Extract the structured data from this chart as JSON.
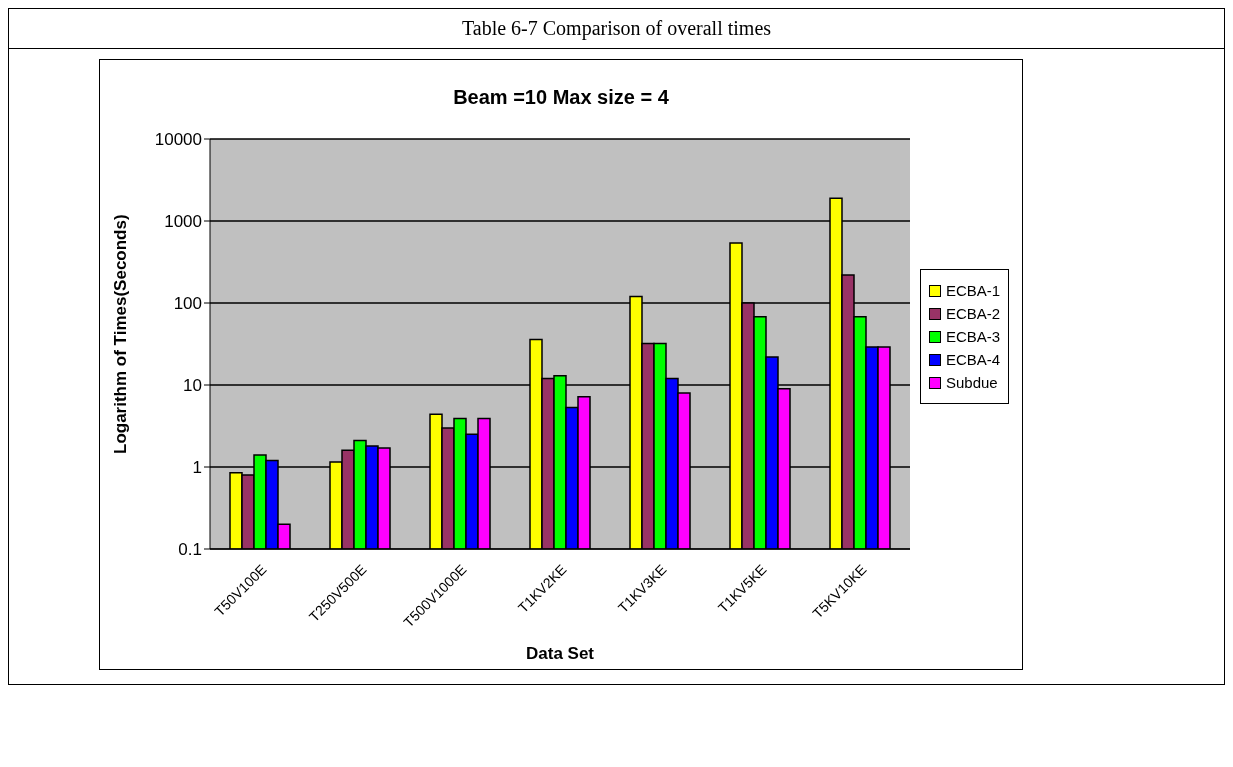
{
  "chart_data": {
    "type": "bar",
    "title": "Table 6-7 Comparison of overall times",
    "subtitle": "Beam =10 Max size = 4",
    "xlabel": "Data Set",
    "ylabel": "Logarithm of Times(Seconds)",
    "categories": [
      "T50V100E",
      "T250V500E",
      "T500V1000E",
      "T1KV2KE",
      "T1KV3KE",
      "T1KV5KE",
      "T5KV10KE"
    ],
    "series": [
      {
        "name": "ECBA-1",
        "color": "#ffff00",
        "values": [
          0.85,
          1.15,
          4.4,
          36,
          120,
          540,
          1900
        ]
      },
      {
        "name": "ECBA-2",
        "color": "#993366",
        "values": [
          0.8,
          1.6,
          3,
          12,
          32,
          100,
          220
        ]
      },
      {
        "name": "ECBA-3",
        "color": "#00ff00",
        "values": [
          1.4,
          2.1,
          3.9,
          13,
          32,
          68,
          68
        ]
      },
      {
        "name": "ECBA-4",
        "color": "#0000ff",
        "values": [
          1.2,
          1.8,
          2.5,
          5.3,
          12,
          22,
          29
        ]
      },
      {
        "name": "Subdue",
        "color": "#ff00ff",
        "values": [
          0.2,
          1.7,
          3.9,
          7.2,
          8,
          9,
          29
        ]
      }
    ],
    "log": true,
    "ylim": [
      0.1,
      10000
    ],
    "yticks": [
      0.1,
      1,
      10,
      100,
      1000,
      10000
    ],
    "grid": "y",
    "legend": "right"
  }
}
